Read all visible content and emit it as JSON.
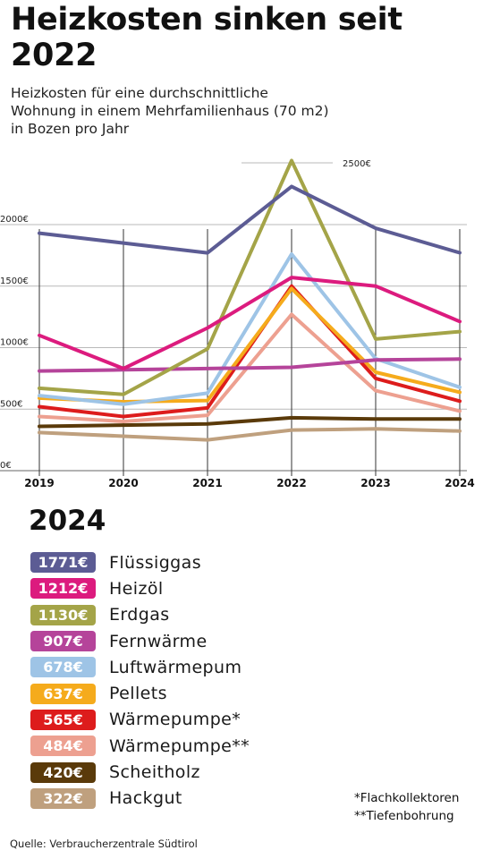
{
  "header": {
    "title": "Heizkosten sinken seit 2022",
    "subtitle": "Heizkosten für eine durchschnittliche Wohnung in einem Mehrfamilienhaus (70 m2) in Bozen pro Jahr"
  },
  "chart_data": {
    "type": "line",
    "title": "Heizkosten sinken seit 2022",
    "subtitle": "Heizkosten für eine durchschnittliche Wohnung in einem Mehrfamilienhaus (70 m2) in Bozen pro Jahr",
    "x": [
      "2019",
      "2020",
      "2021",
      "2022",
      "2023",
      "2024"
    ],
    "xlabel": "",
    "ylabel": "",
    "ylim": [
      0,
      2500
    ],
    "yticks": [
      "0€",
      "500€",
      "1000€",
      "1500€",
      "2000€"
    ],
    "top_tick_label": "2500€",
    "grid": "horizontal",
    "series": [
      {
        "name": "Flüssiggas",
        "color": "#5c5c94",
        "values": [
          1930,
          1850,
          1770,
          2310,
          1970,
          1771
        ]
      },
      {
        "name": "Heizöl",
        "color": "#dc1b7e",
        "values": [
          1100,
          830,
          1160,
          1570,
          1500,
          1212
        ]
      },
      {
        "name": "Erdgas",
        "color": "#a4a448",
        "values": [
          670,
          620,
          990,
          2520,
          1070,
          1130
        ]
      },
      {
        "name": "Fernwärme",
        "color": "#b5449a",
        "values": [
          810,
          820,
          830,
          840,
          900,
          907
        ]
      },
      {
        "name": "Luftwärmepum",
        "color": "#9ec4e6",
        "values": [
          610,
          540,
          630,
          1760,
          910,
          678
        ]
      },
      {
        "name": "Pellets",
        "color": "#f5ab1c",
        "values": [
          590,
          560,
          570,
          1480,
          800,
          637
        ]
      },
      {
        "name": "Wärmepumpe*",
        "color": "#dd1c1c",
        "values": [
          520,
          440,
          510,
          1500,
          750,
          565
        ]
      },
      {
        "name": "Wärmepumpe**",
        "color": "#eda090",
        "values": [
          440,
          400,
          450,
          1270,
          650,
          484
        ]
      },
      {
        "name": "Scheitholz",
        "color": "#5a3a0a",
        "values": [
          360,
          370,
          380,
          430,
          420,
          420
        ]
      },
      {
        "name": "Hackgut",
        "color": "#bfa07e",
        "values": [
          310,
          280,
          250,
          330,
          340,
          322
        ]
      }
    ]
  },
  "legend": {
    "heading": "2024",
    "items": [
      {
        "value": "1771€",
        "label": "Flüssiggas",
        "color": "#5c5c94"
      },
      {
        "value": "1212€",
        "label": "Heizöl",
        "color": "#dc1b7e"
      },
      {
        "value": "1130€",
        "label": "Erdgas",
        "color": "#a4a448"
      },
      {
        "value": "907€",
        "label": "Fernwärme",
        "color": "#b5449a"
      },
      {
        "value": "678€",
        "label": "Luftwärmepum",
        "color": "#9ec4e6"
      },
      {
        "value": "637€",
        "label": "Pellets",
        "color": "#f5ab1c"
      },
      {
        "value": "565€",
        "label": "Wärmepumpe*",
        "color": "#dd1c1c"
      },
      {
        "value": "484€",
        "label": "Wärmepumpe**",
        "color": "#eda090"
      },
      {
        "value": "420€",
        "label": "Scheitholz",
        "color": "#5a3a0a"
      },
      {
        "value": "322€",
        "label": "Hackgut",
        "color": "#bfa07e"
      }
    ]
  },
  "footnotes": {
    "line1": "*Flachkollektoren",
    "line2": "**Tiefenbohrung"
  },
  "source": "Quelle: Verbraucherzentrale Südtirol"
}
